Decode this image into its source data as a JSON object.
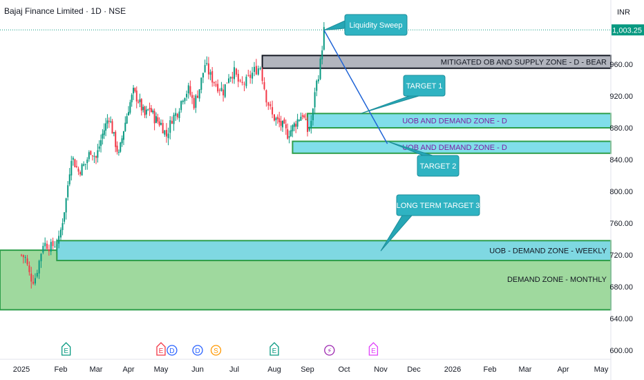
{
  "header": {
    "symbol_title": "Bajaj Finance Limited · 1D · NSE",
    "currency": "INR"
  },
  "chart_data": {
    "type": "candlestick",
    "price_axis": {
      "ticks": [
        "600.00",
        "640.00",
        "680.00",
        "720.00",
        "760.00",
        "800.00",
        "840.00",
        "880.00",
        "920.00",
        "960.00"
      ],
      "tick_values": [
        600,
        640,
        680,
        720,
        760,
        800,
        840,
        880,
        920,
        960
      ],
      "current_price_label": "1,003.25",
      "current_price": 1003.25,
      "ylim": [
        592,
        1012
      ]
    },
    "time_axis": {
      "labels": [
        "2025",
        "Feb",
        "Mar",
        "Apr",
        "May",
        "Jun",
        "Jul",
        "Aug",
        "Sep",
        "Oct",
        "Nov",
        "Dec",
        "2026",
        "Feb",
        "Mar",
        "Apr",
        "May"
      ]
    },
    "candles": {
      "start_month": 0,
      "end_month": 8.45,
      "keyframes": [
        [
          0.0,
          720
        ],
        [
          0.1,
          716
        ],
        [
          0.2,
          696
        ],
        [
          0.28,
          688
        ],
        [
          0.35,
          692
        ],
        [
          0.45,
          712
        ],
        [
          0.55,
          735
        ],
        [
          0.75,
          730
        ],
        [
          0.95,
          738
        ],
        [
          1.15,
          790
        ],
        [
          1.3,
          845
        ],
        [
          1.5,
          825
        ],
        [
          1.7,
          835
        ],
        [
          1.85,
          852
        ],
        [
          2.0,
          842
        ],
        [
          2.2,
          872
        ],
        [
          2.4,
          895
        ],
        [
          2.55,
          868
        ],
        [
          2.7,
          845
        ],
        [
          2.85,
          878
        ],
        [
          3.0,
          905
        ],
        [
          3.15,
          925
        ],
        [
          3.3,
          915
        ],
        [
          3.5,
          895
        ],
        [
          3.65,
          905
        ],
        [
          3.8,
          892
        ],
        [
          4.0,
          885
        ],
        [
          4.15,
          870
        ],
        [
          4.3,
          892
        ],
        [
          4.45,
          900
        ],
        [
          4.6,
          920
        ],
        [
          4.75,
          928
        ],
        [
          4.9,
          910
        ],
        [
          5.05,
          930
        ],
        [
          5.2,
          960
        ],
        [
          5.35,
          945
        ],
        [
          5.5,
          935
        ],
        [
          5.7,
          926
        ],
        [
          5.85,
          946
        ],
        [
          6.0,
          950
        ],
        [
          6.15,
          932
        ],
        [
          6.3,
          938
        ],
        [
          6.5,
          952
        ],
        [
          6.65,
          957
        ],
        [
          6.8,
          918
        ],
        [
          6.95,
          895
        ],
        [
          7.1,
          888
        ],
        [
          7.25,
          882
        ],
        [
          7.4,
          872
        ],
        [
          7.55,
          880
        ],
        [
          7.7,
          890
        ],
        [
          7.85,
          898
        ],
        [
          8.0,
          876
        ],
        [
          8.08,
          884
        ],
        [
          8.15,
          900
        ],
        [
          8.2,
          928
        ],
        [
          8.28,
          942
        ],
        [
          8.35,
          962
        ],
        [
          8.45,
          1003
        ]
      ]
    },
    "zones": [
      {
        "label": "MITIGATED OB AND SUPPLY ZONE - D - BEAR",
        "from_month": 6.7,
        "top": 971,
        "bottom": 955,
        "fill": "#b2b5be",
        "stroke": "#131722",
        "text_color": "#131722"
      },
      {
        "label": "UOB AND DEMAND ZONE - D",
        "from_month": 8.0,
        "top": 898,
        "bottom": 880,
        "fill": "#80deea",
        "stroke": "#2e9e4a",
        "text_color": "#7b1fa2"
      },
      {
        "label": "UOB AND DEMAND ZONE - D",
        "from_month": 7.55,
        "top": 863,
        "bottom": 848,
        "fill": "#80deea",
        "stroke": "#2e9e4a",
        "text_color": "#7b1fa2"
      },
      {
        "label": "UOB - DEMAND ZONE - WEEKLY",
        "from_month": 0.9,
        "top": 738,
        "bottom": 713,
        "fill": "#7fd8e2",
        "stroke": "#2e9e4a",
        "text_color": "#131722"
      },
      {
        "label": "DEMAND ZONE - MONTHLY",
        "from_month": 0,
        "top": 726,
        "bottom": 651,
        "fill": "#9fd99e",
        "stroke": "#2e9e4a",
        "text_color": "#131722"
      }
    ],
    "callouts": [
      {
        "text": "Liquidity Sweep",
        "anchor_month": 8.45,
        "anchor_price": 1003
      },
      {
        "text": "TARGET 1",
        "anchor_month": 9.45,
        "anchor_price": 898
      },
      {
        "text": "TARGET 2",
        "anchor_month": 10.2,
        "anchor_price": 863
      },
      {
        "text": "LONG TERM TARGET 3",
        "anchor_month": 10.0,
        "anchor_price": 725
      }
    ],
    "projection": {
      "from_month": 8.45,
      "from_price": 1003,
      "to_month": 10.2,
      "to_price": 860,
      "color": "#1e63d6"
    },
    "events": [
      {
        "label": "E",
        "month": 1.15,
        "color": "#089981"
      },
      {
        "label": "E",
        "month": 4.0,
        "color": "#f23645"
      },
      {
        "label": "D",
        "month": 4.3,
        "color": "#2962ff"
      },
      {
        "label": "D",
        "month": 5.0,
        "color": "#2962ff"
      },
      {
        "label": "S",
        "month": 5.5,
        "color": "#ff9800"
      },
      {
        "label": "E",
        "month": 7.0,
        "color": "#089981"
      },
      {
        "label": "⚡",
        "month": 8.6,
        "color": "#9c27b0"
      },
      {
        "label": "E",
        "month": 9.8,
        "color": "#e040fb"
      }
    ],
    "colors": {
      "up": "#089981",
      "down": "#f23645",
      "current_price_bg": "#089981"
    }
  }
}
